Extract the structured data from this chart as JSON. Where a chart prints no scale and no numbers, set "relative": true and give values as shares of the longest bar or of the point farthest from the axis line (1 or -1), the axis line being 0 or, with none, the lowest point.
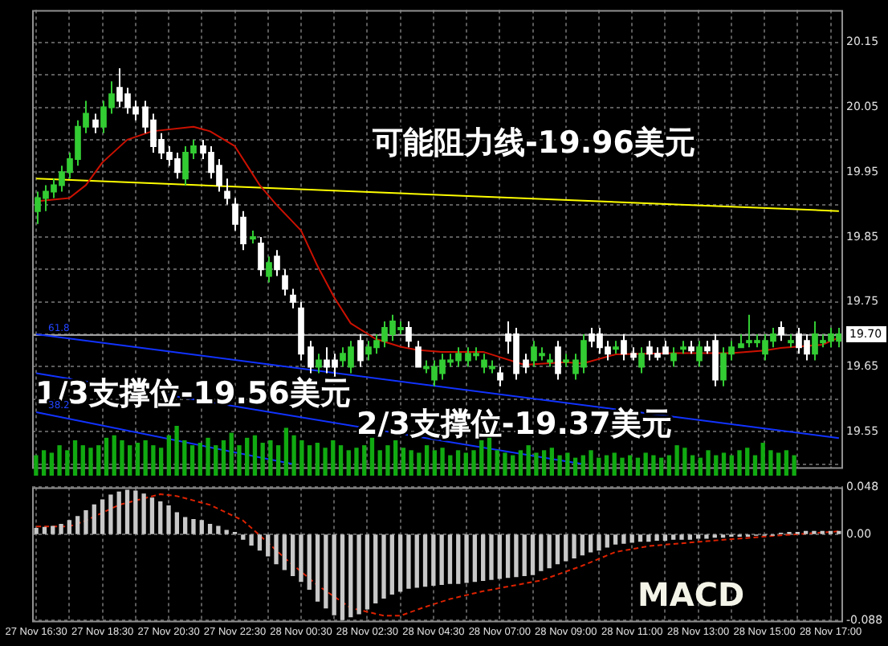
{
  "chart_data": [
    {
      "type": "candlestick",
      "categories": [
        null,
        null,
        null,
        null,
        null,
        null,
        null,
        null,
        null,
        null,
        null,
        null,
        null,
        null,
        null,
        null,
        null,
        null,
        null,
        null,
        null,
        null,
        null,
        null,
        null,
        null,
        null,
        null,
        null,
        null,
        null,
        null,
        null,
        null,
        null,
        null,
        null,
        null,
        null,
        null,
        null,
        null,
        null,
        null,
        null,
        null,
        null,
        null,
        null,
        null,
        null,
        null,
        null,
        null,
        null,
        null,
        null,
        null,
        null,
        null,
        null,
        null,
        null,
        null,
        null,
        null,
        null,
        null,
        null,
        null,
        null,
        null,
        null,
        null,
        null,
        null,
        null,
        null,
        null,
        null,
        null,
        null,
        null,
        null,
        null,
        null,
        null,
        null,
        null,
        null,
        null,
        null,
        null,
        null,
        null,
        null,
        null,
        null
      ],
      "ohlc": [
        [
          19.89,
          19.92,
          19.87,
          19.91
        ],
        [
          19.91,
          19.93,
          19.89,
          19.92
        ],
        [
          19.92,
          19.94,
          19.91,
          19.93
        ],
        [
          19.93,
          19.96,
          19.92,
          19.95
        ],
        [
          19.95,
          19.98,
          19.94,
          19.97
        ],
        [
          19.97,
          20.03,
          19.96,
          20.02
        ],
        [
          20.02,
          20.06,
          20.01,
          20.04
        ],
        [
          20.03,
          20.04,
          20.01,
          20.02
        ],
        [
          20.02,
          20.06,
          20.01,
          20.05
        ],
        [
          20.05,
          20.09,
          20.04,
          20.07
        ],
        [
          20.08,
          20.11,
          20.05,
          20.06
        ],
        [
          20.07,
          20.08,
          20.04,
          20.05
        ],
        [
          20.05,
          20.06,
          20.03,
          20.04
        ],
        [
          20.05,
          20.06,
          20.01,
          20.02
        ],
        [
          20.03,
          20.04,
          19.98,
          19.99
        ],
        [
          20.0,
          20.01,
          19.97,
          19.98
        ],
        [
          19.98,
          19.99,
          19.96,
          19.97
        ],
        [
          19.97,
          19.98,
          19.94,
          19.95
        ],
        [
          19.94,
          19.99,
          19.93,
          19.98
        ],
        [
          19.98,
          20.0,
          19.97,
          19.99
        ],
        [
          19.99,
          20.0,
          19.97,
          19.98
        ],
        [
          19.98,
          19.99,
          19.94,
          19.95
        ],
        [
          19.96,
          19.97,
          19.92,
          19.93
        ],
        [
          19.92,
          19.94,
          19.9,
          19.91
        ],
        [
          19.9,
          19.91,
          19.86,
          19.87
        ],
        [
          19.88,
          19.89,
          19.83,
          19.84
        ],
        [
          19.85,
          19.86,
          19.84,
          19.85
        ],
        [
          19.84,
          19.85,
          19.79,
          19.8
        ],
        [
          19.79,
          19.82,
          19.78,
          19.81
        ],
        [
          19.82,
          19.83,
          19.79,
          19.8
        ],
        [
          19.79,
          19.8,
          19.76,
          19.77
        ],
        [
          19.76,
          19.77,
          19.74,
          19.75
        ],
        [
          19.74,
          19.75,
          19.66,
          19.67
        ],
        [
          19.68,
          19.69,
          19.64,
          19.65
        ],
        [
          19.65,
          19.67,
          19.64,
          19.66
        ],
        [
          19.66,
          19.68,
          19.64,
          19.65
        ],
        [
          19.66,
          19.67,
          19.63,
          19.65
        ],
        [
          19.66,
          19.68,
          19.65,
          19.67
        ],
        [
          19.65,
          19.69,
          19.64,
          19.68
        ],
        [
          19.69,
          19.7,
          19.65,
          19.66
        ],
        [
          19.67,
          19.69,
          19.66,
          19.68
        ],
        [
          19.68,
          19.7,
          19.67,
          19.69
        ],
        [
          19.69,
          19.72,
          19.68,
          19.71
        ],
        [
          19.7,
          19.73,
          19.69,
          19.72
        ],
        [
          19.71,
          19.72,
          19.7,
          19.71
        ],
        [
          19.71,
          19.72,
          19.68,
          19.69
        ],
        [
          19.68,
          19.69,
          19.65,
          19.65
        ],
        [
          19.65,
          19.66,
          19.64,
          19.65
        ],
        [
          19.63,
          19.66,
          19.62,
          19.65
        ],
        [
          19.64,
          19.67,
          19.63,
          19.66
        ],
        [
          19.66,
          19.67,
          19.65,
          19.66
        ],
        [
          19.66,
          19.68,
          19.65,
          19.67
        ],
        [
          19.66,
          19.68,
          19.65,
          19.67
        ],
        [
          19.67,
          19.68,
          19.66,
          19.67
        ],
        [
          19.65,
          19.67,
          19.64,
          19.66
        ],
        [
          19.65,
          19.66,
          19.64,
          19.65
        ],
        [
          19.64,
          19.65,
          19.62,
          19.63
        ],
        [
          19.7,
          19.72,
          19.67,
          19.69
        ],
        [
          19.7,
          19.71,
          19.63,
          19.64
        ],
        [
          19.66,
          19.67,
          19.64,
          19.65
        ],
        [
          19.66,
          19.69,
          19.65,
          19.68
        ],
        [
          19.67,
          19.68,
          19.66,
          19.67
        ],
        [
          19.66,
          19.67,
          19.65,
          19.66
        ],
        [
          19.68,
          19.69,
          19.63,
          19.64
        ],
        [
          19.66,
          19.67,
          19.65,
          19.66
        ],
        [
          19.64,
          19.67,
          19.63,
          19.66
        ],
        [
          19.65,
          19.7,
          19.64,
          19.69
        ],
        [
          19.7,
          19.71,
          19.68,
          19.69
        ],
        [
          19.7,
          19.71,
          19.67,
          19.68
        ],
        [
          19.68,
          19.69,
          19.66,
          19.67
        ],
        [
          19.68,
          19.69,
          19.67,
          19.68
        ],
        [
          19.69,
          19.7,
          19.66,
          19.67
        ],
        [
          19.67,
          19.68,
          19.66,
          19.665
        ],
        [
          19.65,
          19.68,
          19.64,
          19.67
        ],
        [
          19.68,
          19.69,
          19.66,
          19.67
        ],
        [
          19.67,
          19.68,
          19.66,
          19.665
        ],
        [
          19.68,
          19.69,
          19.67,
          19.67
        ],
        [
          19.66,
          19.68,
          19.65,
          19.67
        ],
        [
          19.68,
          19.69,
          19.67,
          19.68
        ],
        [
          19.68,
          19.69,
          19.67,
          19.675
        ],
        [
          19.66,
          19.69,
          19.65,
          19.68
        ],
        [
          19.68,
          19.69,
          19.67,
          19.675
        ],
        [
          19.69,
          19.7,
          19.62,
          19.63
        ],
        [
          19.63,
          19.68,
          19.62,
          19.67
        ],
        [
          19.67,
          19.69,
          19.66,
          19.68
        ],
        [
          19.68,
          19.7,
          19.68,
          19.685
        ],
        [
          19.69,
          19.73,
          19.68,
          19.69
        ],
        [
          19.69,
          19.7,
          19.68,
          19.69
        ],
        [
          19.67,
          19.7,
          19.66,
          19.69
        ],
        [
          19.69,
          19.71,
          19.68,
          19.7
        ],
        [
          19.71,
          19.72,
          19.69,
          19.7
        ],
        [
          19.69,
          19.7,
          19.68,
          19.69
        ],
        [
          19.7,
          19.71,
          19.67,
          19.68
        ],
        [
          19.69,
          19.7,
          19.66,
          19.67
        ],
        [
          19.67,
          19.72,
          19.66,
          19.7
        ],
        [
          19.69,
          19.7,
          19.68,
          19.69
        ],
        [
          19.69,
          19.71,
          19.68,
          19.7
        ],
        [
          19.69,
          19.71,
          19.68,
          19.7
        ]
      ],
      "colors": [
        "#33cc33",
        "#33cc33",
        "#33cc33",
        "#33cc33",
        "#33cc33",
        "#33cc33",
        "#33cc33",
        "#ffffff",
        "#33cc33",
        "#33cc33",
        "#ffffff",
        "#ffffff",
        "#ffffff",
        "#ffffff",
        "#ffffff",
        "#ffffff",
        "#ffffff",
        "#ffffff",
        "#33cc33",
        "#33cc33",
        "#ffffff",
        "#ffffff",
        "#ffffff",
        "#ffffff",
        "#ffffff",
        "#ffffff",
        "#33cc33",
        "#ffffff",
        "#33cc33",
        "#ffffff",
        "#ffffff",
        "#ffffff",
        "#ffffff",
        "#ffffff",
        "#33cc33",
        "#ffffff",
        "#ffffff",
        "#33cc33",
        "#33cc33",
        "#ffffff",
        "#33cc33",
        "#33cc33",
        "#33cc33",
        "#33cc33",
        "#33cc33",
        "#ffffff",
        "#ffffff",
        "#33cc33",
        "#33cc33",
        "#33cc33",
        "#33cc33",
        "#33cc33",
        "#33cc33",
        "#33cc33",
        "#33cc33",
        "#33cc33",
        "#ffffff",
        "#ffffff",
        "#ffffff",
        "#ffffff",
        "#33cc33",
        "#33cc33",
        "#33cc33",
        "#ffffff",
        "#33cc33",
        "#33cc33",
        "#33cc33",
        "#ffffff",
        "#ffffff",
        "#ffffff",
        "#33cc33",
        "#ffffff",
        "#ffffff",
        "#33cc33",
        "#ffffff",
        "#ffffff",
        "#ffffff",
        "#33cc33",
        "#33cc33",
        "#ffffff",
        "#33cc33",
        "#ffffff",
        "#ffffff",
        "#33cc33",
        "#33cc33",
        "#33cc33",
        "#33cc33",
        "#33cc33",
        "#33cc33",
        "#33cc33",
        "#ffffff",
        "#33cc33",
        "#ffffff",
        "#ffffff",
        "#33cc33",
        "#33cc33",
        "#33cc33",
        "#33cc33"
      ],
      "series": [
        {
          "type": "line",
          "color": "#cc1100",
          "values": [
            19.905,
            null,
            null,
            null,
            19.91,
            null,
            19.93,
            null,
            19.965,
            null,
            null,
            20.0,
            null,
            null,
            20.013,
            null,
            null,
            null,
            null,
            20.02,
            null,
            20.013,
            null,
            null,
            19.99,
            null,
            null,
            19.93,
            null,
            19.9,
            null,
            null,
            19.86,
            null,
            19.805,
            null,
            19.757,
            null,
            19.717,
            null,
            null,
            19.693,
            null,
            null,
            19.681,
            null,
            19.676,
            null,
            null,
            19.673,
            null,
            null,
            null,
            null,
            19.673,
            null,
            19.665,
            null,
            null,
            19.653,
            null,
            null,
            null,
            null,
            19.657,
            null,
            19.655,
            null,
            null,
            null,
            19.669,
            null,
            null,
            null,
            null,
            null,
            null,
            19.671,
            null,
            null,
            null,
            null,
            null,
            null,
            19.671,
            null,
            null,
            null,
            19.675,
            null,
            19.679,
            null,
            null,
            null,
            null,
            19.684,
            null,
            19.695
          ]
        },
        {
          "type": "line",
          "color": "#ffff00",
          "values": [
            19.94,
            null,
            null,
            null,
            null,
            null,
            null,
            null,
            null,
            null,
            null,
            null,
            null,
            null,
            null,
            null,
            null,
            null,
            null,
            null,
            null,
            null,
            null,
            null,
            null,
            null,
            null,
            null,
            null,
            null,
            null,
            null,
            null,
            null,
            null,
            null,
            null,
            null,
            null,
            null,
            null,
            null,
            null,
            null,
            null,
            null,
            null,
            null,
            null,
            null,
            null,
            null,
            null,
            null,
            null,
            null,
            null,
            null,
            null,
            null,
            null,
            null,
            null,
            null,
            null,
            null,
            null,
            null,
            null,
            null,
            null,
            null,
            null,
            null,
            null,
            null,
            null,
            null,
            null,
            null,
            null,
            null,
            null,
            null,
            null,
            null,
            null,
            null,
            null,
            null,
            null,
            null,
            null,
            null,
            null,
            null,
            null,
            19.89
          ]
        },
        {
          "type": "line",
          "color": "#1133ff",
          "values": [
            19.7,
            null,
            null,
            null,
            null,
            null,
            null,
            null,
            null,
            null,
            null,
            null,
            null,
            null,
            null,
            null,
            null,
            null,
            null,
            null,
            null,
            null,
            null,
            null,
            null,
            null,
            null,
            null,
            null,
            null,
            null,
            null,
            null,
            null,
            null,
            null,
            null,
            null,
            null,
            null,
            null,
            null,
            null,
            null,
            null,
            null,
            null,
            null,
            null,
            null,
            null,
            null,
            null,
            null,
            null,
            null,
            null,
            null,
            null,
            null,
            null,
            null,
            null,
            null,
            null,
            null,
            null,
            null,
            null,
            null,
            null,
            null,
            null,
            null,
            null,
            null,
            null,
            null,
            null,
            null,
            null,
            null,
            null,
            null,
            null,
            null,
            null,
            null,
            null,
            null,
            null,
            null,
            null,
            null,
            null,
            null,
            null,
            19.54
          ]
        },
        {
          "type": "line",
          "color": "#1133ff",
          "values": [
            19.64,
            null,
            null,
            null,
            null,
            null,
            null,
            null,
            null,
            null,
            null,
            null,
            null,
            null,
            null,
            null,
            null,
            null,
            null,
            null,
            null,
            null,
            null,
            null,
            null,
            null,
            null,
            null,
            null,
            null,
            null,
            null,
            null,
            null,
            null,
            null,
            null,
            null,
            null,
            null,
            null,
            null,
            null,
            null,
            null,
            null,
            null,
            null,
            null,
            null,
            null,
            null,
            null,
            null,
            null,
            null,
            null,
            null,
            null,
            null,
            null,
            null,
            null,
            null,
            null,
            null,
            19.5,
            null,
            null,
            null,
            null,
            null,
            null,
            null,
            null,
            null,
            null,
            null,
            null,
            null,
            null,
            null,
            null,
            null,
            null,
            null,
            null,
            null,
            null,
            null,
            null,
            null,
            null,
            null,
            null,
            null,
            null,
            null
          ]
        },
        {
          "type": "line",
          "color": "#1133ff",
          "values": [
            19.58,
            null,
            null,
            null,
            null,
            null,
            null,
            null,
            null,
            null,
            null,
            null,
            null,
            null,
            null,
            null,
            null,
            null,
            null,
            null,
            null,
            null,
            null,
            null,
            null,
            null,
            null,
            null,
            null,
            null,
            null,
            19.5,
            null,
            null,
            null,
            null,
            null,
            null,
            null,
            null,
            null,
            null,
            null,
            null,
            null,
            null,
            null,
            null,
            null,
            null,
            null,
            null,
            null,
            null,
            null,
            null,
            null,
            null,
            null,
            null,
            null,
            null,
            null,
            null,
            null,
            null,
            null,
            null,
            null,
            null,
            null,
            null,
            null,
            null,
            null,
            null,
            null,
            null,
            null,
            null,
            null,
            null,
            null,
            null,
            null,
            null,
            null,
            null,
            null,
            null,
            null,
            null,
            null,
            null,
            null,
            null,
            null,
            null
          ]
        }
      ],
      "ylim": [
        19.495,
        20.2
      ],
      "yticks": [
        {
          "value": 19.5,
          "label": null
        },
        19.55,
        {
          "value": 19.6,
          "label": null
        },
        19.65,
        {
          "value": 19.7,
          "label": null
        },
        19.75,
        {
          "value": 19.8,
          "label": null
        },
        19.85,
        {
          "value": 19.9,
          "label": null
        },
        19.95,
        {
          "value": 20.0,
          "label": null
        },
        20.05,
        {
          "value": 20.1,
          "label": null
        },
        20.15
      ],
      "grid": true,
      "tick_labels": "y",
      "ref_lines": [
        {
          "axis": "y",
          "value": 19.7,
          "label": "19.70",
          "color": "#a0a0a0"
        }
      ],
      "annotations": [
        "可能阻力线-19.96美元",
        "1/3支撑位-19.56美元",
        "2/3支撑位-19.37美元",
        "61.8",
        "38.2"
      ]
    },
    {
      "type": "bar",
      "relative": true,
      "tick_labels": false,
      "color": "#11aa11",
      "categories": [
        null,
        null,
        null,
        null,
        null,
        null,
        null,
        null,
        null,
        null,
        null,
        null,
        null,
        null,
        null,
        null,
        null,
        null,
        null,
        null,
        null,
        null,
        null,
        null,
        null,
        null,
        null,
        null,
        null,
        null,
        null,
        null,
        null,
        null,
        null,
        null,
        null,
        null,
        null,
        null,
        null,
        null,
        null,
        null,
        null,
        null,
        null,
        null,
        null,
        null,
        null,
        null,
        null,
        null,
        null,
        null,
        null,
        null,
        null,
        null,
        null,
        null,
        null,
        null,
        null,
        null,
        null,
        null,
        null,
        null,
        null,
        null,
        null,
        null,
        null,
        null,
        null,
        null,
        null,
        null,
        null,
        null,
        null,
        null,
        null,
        null,
        null,
        null,
        null,
        null,
        null,
        null,
        null,
        null,
        null,
        null,
        null,
        null
      ],
      "values": [
        0.4,
        0.5,
        0.45,
        0.6,
        0.5,
        0.7,
        0.6,
        0.55,
        0.6,
        0.75,
        0.8,
        0.7,
        0.6,
        0.65,
        0.7,
        0.6,
        0.55,
        0.8,
        1.0,
        0.7,
        0.6,
        0.65,
        0.75,
        0.6,
        0.7,
        0.85,
        0.6,
        0.75,
        0.8,
        0.65,
        0.7,
        0.6,
        0.95,
        0.8,
        0.7,
        0.6,
        0.65,
        0.55,
        0.7,
        0.6,
        0.5,
        0.55,
        0.6,
        0.75,
        0.5,
        0.6,
        0.7,
        0.55,
        0.5,
        0.45,
        0.6,
        0.5,
        0.55,
        0.4,
        0.5,
        0.45,
        0.5,
        0.7,
        0.75,
        0.5,
        0.45,
        0.4,
        0.5,
        0.6,
        0.45,
        0.5,
        0.55,
        0.4,
        0.45,
        0.35,
        0.4,
        0.5,
        0.35,
        0.4,
        0.45,
        0.35,
        0.4,
        0.35,
        0.45,
        0.4,
        0.35,
        0.4,
        0.6,
        0.55,
        0.4,
        0.35,
        0.5,
        0.4,
        0.45,
        0.4,
        0.5,
        0.55,
        0.4,
        0.65,
        0.5,
        0.45,
        0.5,
        0.4
      ]
    },
    {
      "type": "bar",
      "title": "MACD",
      "categories": [
        "27 Nov 16:30",
        null,
        null,
        null,
        null,
        null,
        null,
        null,
        "27 Nov 18:30",
        null,
        null,
        null,
        null,
        null,
        null,
        null,
        "27 Nov 20:30",
        null,
        null,
        null,
        null,
        null,
        null,
        null,
        "27 Nov 22:30",
        null,
        null,
        null,
        null,
        null,
        null,
        null,
        "28 Nov 00:30",
        null,
        null,
        null,
        null,
        null,
        null,
        null,
        "28 Nov 02:30",
        null,
        null,
        null,
        null,
        null,
        null,
        null,
        "28 Nov 04:30",
        null,
        null,
        null,
        null,
        null,
        null,
        null,
        "28 Nov 07:00",
        null,
        null,
        null,
        null,
        null,
        null,
        null,
        "28 Nov 09:00",
        null,
        null,
        null,
        null,
        null,
        null,
        null,
        "28 Nov 11:00",
        null,
        null,
        null,
        null,
        null,
        null,
        null,
        "28 Nov 13:00",
        null,
        null,
        null,
        null,
        null,
        null,
        null,
        "28 Nov 15:00",
        null,
        null,
        null,
        null,
        null,
        null,
        null,
        "28 Nov 17:00",
        null
      ],
      "series": [
        {
          "type": "bar",
          "color": "#c8c8c8",
          "values": [
            0.006,
            0.007,
            0.008,
            0.01,
            0.014,
            0.018,
            0.024,
            0.03,
            0.035,
            0.04,
            0.043,
            0.045,
            0.044,
            0.041,
            0.037,
            0.033,
            0.029,
            0.022,
            0.017,
            0.015,
            0.014,
            0.01,
            0.008,
            0.004,
            0.002,
            -0.005,
            -0.011,
            -0.016,
            -0.022,
            -0.03,
            -0.036,
            -0.042,
            -0.048,
            -0.056,
            -0.068,
            -0.075,
            -0.082,
            -0.087,
            -0.084,
            -0.081,
            -0.076,
            -0.07,
            -0.065,
            -0.061,
            -0.058,
            -0.055,
            -0.054,
            -0.053,
            -0.052,
            -0.051,
            -0.05,
            -0.05,
            -0.049,
            -0.048,
            -0.047,
            -0.046,
            -0.045,
            -0.044,
            -0.043,
            -0.042,
            -0.041,
            -0.037,
            -0.034,
            -0.03,
            -0.027,
            -0.024,
            -0.021,
            -0.018,
            -0.016,
            -0.013,
            -0.01,
            -0.009,
            -0.008,
            -0.007,
            -0.007,
            -0.006,
            -0.006,
            -0.005,
            -0.005,
            -0.005,
            -0.004,
            -0.004,
            -0.003,
            -0.003,
            -0.002,
            -0.002,
            -0.002,
            -0.001,
            -0.001,
            -0.001,
            0.001,
            0.002,
            0.002,
            0.003,
            0.003,
            0.003,
            0.003,
            0.003
          ]
        },
        {
          "type": "line",
          "color": "#dd2200",
          "line_style": "dashed",
          "values": [
            0.008,
            null,
            null,
            null,
            0.008,
            null,
            0.014,
            null,
            null,
            null,
            0.03,
            null,
            null,
            null,
            null,
            0.041,
            null,
            0.039,
            null,
            null,
            null,
            0.03,
            null,
            null,
            null,
            0.014,
            null,
            -0.001,
            null,
            null,
            -0.024,
            null,
            null,
            null,
            -0.052,
            null,
            null,
            null,
            -0.075,
            null,
            null,
            null,
            -0.083,
            null,
            -0.083,
            null,
            null,
            -0.074,
            null,
            null,
            -0.066,
            null,
            null,
            null,
            -0.058,
            null,
            null,
            null,
            null,
            null,
            null,
            -0.047,
            null,
            null,
            null,
            null,
            -0.032,
            null,
            null,
            null,
            -0.018,
            null,
            null,
            null,
            -0.012,
            null,
            null,
            null,
            null,
            null,
            null,
            -0.007,
            null,
            null,
            null,
            null,
            null,
            null,
            null,
            null,
            -0.001,
            null,
            null,
            null,
            null,
            null,
            null,
            0.003
          ]
        }
      ],
      "ylim": [
        -0.088,
        0.048
      ],
      "yticks": [
        -0.088,
        {
          "value": 0,
          "label": "0.00"
        },
        0.048
      ],
      "grid": true
    }
  ]
}
